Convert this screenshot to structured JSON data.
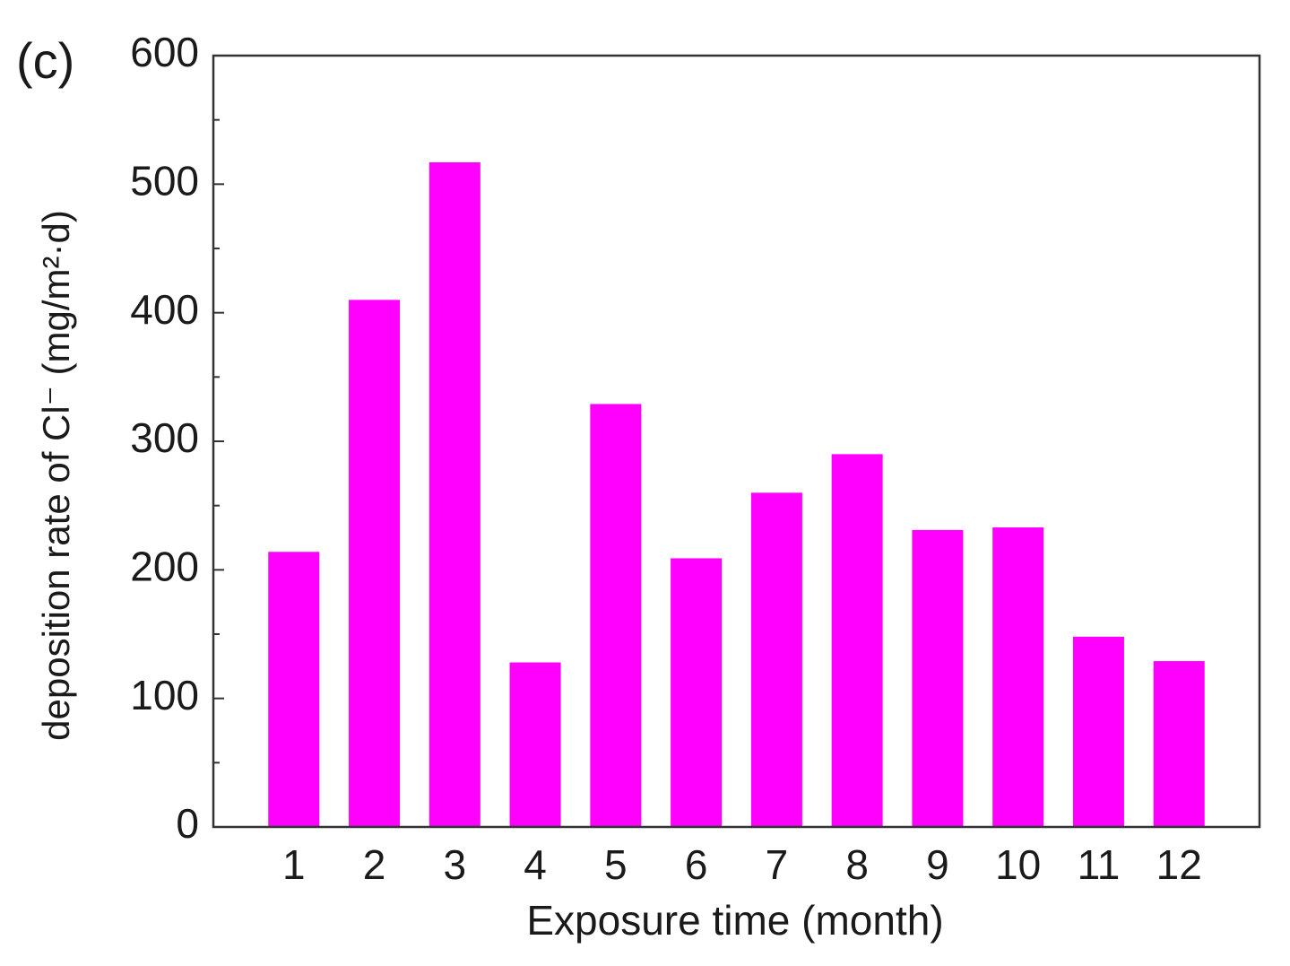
{
  "chart_data": {
    "type": "bar",
    "panel_label": "(c)",
    "x_label": "Exposure time (month)",
    "y_label": "deposition rate of Cl⁻  (mg/m²·d)",
    "categories": [
      "1",
      "2",
      "3",
      "4",
      "5",
      "6",
      "7",
      "8",
      "9",
      "10",
      "11",
      "12"
    ],
    "values": [
      214,
      410,
      517,
      128,
      329,
      209,
      260,
      290,
      231,
      233,
      148,
      129
    ],
    "color": "#ff00ff",
    "ylim": [
      0,
      600
    ],
    "yticks": [
      0,
      100,
      200,
      300,
      400,
      500,
      600
    ],
    "minor_yticks": [
      50,
      150,
      250,
      350,
      450,
      550
    ]
  }
}
